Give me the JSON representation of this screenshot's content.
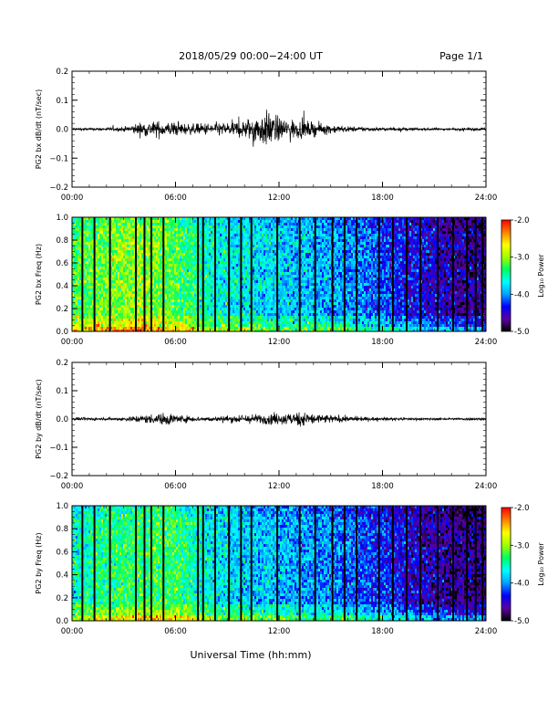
{
  "header": {
    "title": "2018/05/29  00:00−24:00 UT",
    "page": "Page 1/1"
  },
  "xaxis": {
    "label": "Universal Time (hh:mm)",
    "ticks": [
      "00:00",
      "06:00",
      "12:00",
      "18:00",
      "24:00"
    ],
    "range_hours": [
      0,
      24
    ]
  },
  "colorbar": {
    "label": "Log₁₀ Power",
    "ticks": [
      "-2.0",
      "-3.0",
      "-4.0",
      "-5.0"
    ],
    "range": [
      -5.0,
      -2.0
    ],
    "colors": [
      "#000000",
      "#5a00a0",
      "#0000ff",
      "#00a0ff",
      "#00ffff",
      "#00ff60",
      "#a0ff00",
      "#ffff00",
      "#ff8000",
      "#ff0000"
    ]
  },
  "chart_data": [
    {
      "type": "line",
      "ylabel": "PG2 bx dB/dt (nT/sec)",
      "ylim": [
        -0.2,
        0.2
      ],
      "yticks": [
        "0.2",
        "0.1",
        "0.0",
        "−0.1",
        "−0.2"
      ],
      "ytick_values": [
        0.2,
        0.1,
        0.0,
        -0.1,
        -0.2
      ],
      "xticks": [
        "00:00",
        "06:00",
        "12:00",
        "18:00",
        "24:00"
      ],
      "envelope": {
        "x_hours": [
          0,
          1,
          2,
          3,
          3.5,
          4,
          5,
          6,
          7,
          8,
          9,
          10,
          10.5,
          11,
          11.5,
          12,
          12.5,
          13,
          14,
          15,
          16,
          17,
          18,
          19,
          20,
          21,
          22,
          23,
          24
        ],
        "amplitude": [
          0.006,
          0.006,
          0.007,
          0.01,
          0.02,
          0.03,
          0.035,
          0.03,
          0.022,
          0.028,
          0.03,
          0.04,
          0.06,
          0.07,
          0.08,
          0.05,
          0.045,
          0.04,
          0.03,
          0.02,
          0.012,
          0.01,
          0.008,
          0.007,
          0.006,
          0.006,
          0.005,
          0.006,
          0.006
        ]
      }
    },
    {
      "type": "heatmap",
      "ylabel": "PG2 bx Freq (Hz)",
      "ylim": [
        0.0,
        1.0
      ],
      "yticks": [
        "1.0",
        "0.8",
        "0.6",
        "0.4",
        "0.2",
        "0.0"
      ],
      "ytick_values": [
        1.0,
        0.8,
        0.6,
        0.4,
        0.2,
        0.0
      ],
      "xticks": [
        "00:00",
        "06:00",
        "12:00",
        "18:00",
        "24:00"
      ],
      "zlim": [
        -5.0,
        -2.0
      ],
      "power_profile": {
        "x_hours": [
          0,
          2,
          4,
          6,
          8,
          10,
          12,
          14,
          16,
          18,
          20,
          22,
          24
        ],
        "log10_power": [
          -3.3,
          -3.1,
          -3.0,
          -3.2,
          -3.6,
          -3.7,
          -3.8,
          -3.9,
          -4.0,
          -4.2,
          -4.4,
          -4.6,
          -4.7
        ]
      },
      "gaps_hours": [
        0.6,
        1.3,
        2.2,
        3.7,
        4.2,
        4.6,
        5.3,
        7.3,
        7.6,
        8.3,
        9.1,
        9.8,
        10.4,
        11.9,
        13.2,
        14.1,
        15.1,
        15.8,
        16.5,
        17.8,
        18.6,
        19.4,
        20.2,
        21.2,
        22.1,
        22.9,
        23.4,
        23.8
      ]
    },
    {
      "type": "line",
      "ylabel": "PG2 by dB/dt (nT/sec)",
      "ylim": [
        -0.2,
        0.2
      ],
      "yticks": [
        "0.2",
        "0.1",
        "0.0",
        "−0.1",
        "−0.2"
      ],
      "ytick_values": [
        0.2,
        0.1,
        0.0,
        -0.1,
        -0.2
      ],
      "xticks": [
        "00:00",
        "06:00",
        "12:00",
        "18:00",
        "24:00"
      ],
      "envelope": {
        "x_hours": [
          0,
          1,
          2,
          3,
          3.5,
          4,
          5,
          5.5,
          6,
          7,
          8,
          9,
          10,
          11,
          12,
          13,
          13.5,
          14,
          15,
          16,
          17,
          18,
          19,
          20,
          21,
          22,
          23,
          24
        ],
        "amplitude": [
          0.006,
          0.006,
          0.006,
          0.008,
          0.014,
          0.018,
          0.022,
          0.03,
          0.02,
          0.012,
          0.01,
          0.015,
          0.02,
          0.022,
          0.025,
          0.03,
          0.035,
          0.025,
          0.018,
          0.012,
          0.009,
          0.007,
          0.006,
          0.006,
          0.005,
          0.005,
          0.006,
          0.006
        ]
      }
    },
    {
      "type": "heatmap",
      "ylabel": "PG2 by Freq (Hz)",
      "ylim": [
        0.0,
        1.0
      ],
      "yticks": [
        "1.0",
        "0.8",
        "0.6",
        "0.4",
        "0.2",
        "0.0"
      ],
      "ytick_values": [
        1.0,
        0.8,
        0.6,
        0.4,
        0.2,
        0.0
      ],
      "xticks": [
        "00:00",
        "06:00",
        "12:00",
        "18:00",
        "24:00"
      ],
      "zlim": [
        -5.0,
        -2.0
      ],
      "power_profile": {
        "x_hours": [
          0,
          2,
          4,
          6,
          8,
          10,
          12,
          14,
          16,
          18,
          20,
          22,
          24
        ],
        "log10_power": [
          -3.6,
          -3.4,
          -3.3,
          -3.3,
          -3.7,
          -3.8,
          -3.9,
          -4.0,
          -4.1,
          -4.3,
          -4.5,
          -4.7,
          -4.7
        ]
      },
      "gaps_hours": [
        0.6,
        1.3,
        2.2,
        3.7,
        4.2,
        4.6,
        5.3,
        7.3,
        7.6,
        8.3,
        9.1,
        9.8,
        10.4,
        11.9,
        13.2,
        14.1,
        15.1,
        15.8,
        16.5,
        17.8,
        18.6,
        19.4,
        20.2,
        21.2,
        22.1,
        22.9,
        23.4,
        23.8
      ]
    }
  ]
}
